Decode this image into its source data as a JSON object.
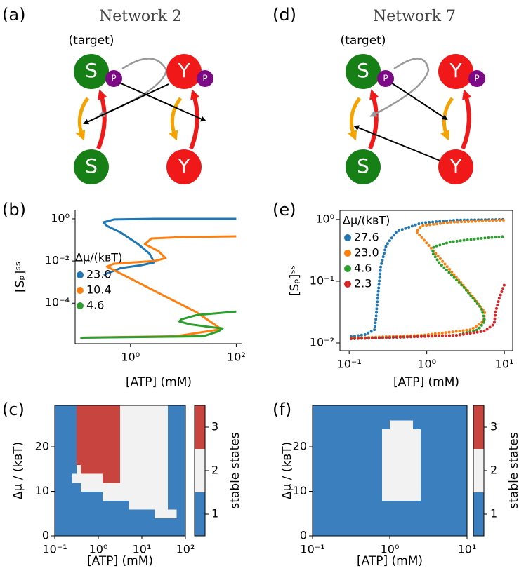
{
  "diagrams": [
    {
      "panel": "(a)",
      "title": "Network 2",
      "annotation": "(target)",
      "nodes": [
        "S",
        "Y",
        "S",
        "Y"
      ],
      "phospho": [
        "P",
        "P"
      ]
    },
    {
      "panel": "(d)",
      "title": "Network 7",
      "annotation": "(target)",
      "nodes": [
        "S",
        "Y",
        "S",
        "Y"
      ],
      "phospho": [
        "P",
        "P"
      ]
    }
  ],
  "chart_data": [
    {
      "type": "line",
      "panel": "(b)",
      "xlabel": "[ATP] (mM)",
      "ylabel": "[Sₚ]ˢˢ",
      "xscale": "log",
      "yscale": "log",
      "xlim": [
        0.09,
        130
      ],
      "ylim": [
        1.2e-06,
        2.5
      ],
      "xticks": [
        {
          "value": 1,
          "label": "10⁰"
        },
        {
          "value": 100,
          "label": "10²"
        }
      ],
      "yticks": [
        {
          "value": 0.0001,
          "label": "10⁻⁴"
        },
        {
          "value": 0.01,
          "label": "10⁻²"
        },
        {
          "value": 1,
          "label": "10⁰"
        }
      ],
      "spines": "left-bottom",
      "style": "solid",
      "legend": "center left",
      "legend_title": "Δμ/(kʙT)",
      "series": [
        {
          "name": "23.0",
          "color": "#1f77b4",
          "x": [
            0.31,
            0.66,
            1.6,
            2.8,
            2.3,
            1.4,
            0.66,
            0.36,
            0.31,
            0.49,
            2.9,
            100
          ],
          "values": [
            0.0022,
            0.0046,
            0.0063,
            0.0086,
            0.022,
            0.063,
            0.22,
            0.46,
            0.68,
            0.93,
            1.0,
            1.0
          ]
        },
        {
          "name": "10.4",
          "color": "#ff7f0e",
          "x": [
            0.113,
            7.2,
            43,
            50,
            17.7,
            3.96,
            0.89,
            0.36,
            0.49,
            2.9,
            4.6,
            3.4,
            1.87,
            2.5,
            9.7,
            100
          ],
          "values": [
            2.3e-06,
            2.7e-06,
            5.4e-06,
            6.3e-06,
            3.7e-05,
            0.00025,
            0.0017,
            0.0054,
            0.0074,
            0.01,
            0.0136,
            0.029,
            0.063,
            0.117,
            0.136,
            0.147
          ]
        },
        {
          "name": "4.6",
          "color": "#2ca02c",
          "x": [
            0.113,
            23.8,
            45.9,
            55,
            32,
            13.1,
            8.4,
            9.1,
            17.7,
            100
          ],
          "values": [
            2.3e-06,
            2.7e-06,
            4.6e-06,
            6.3e-06,
            7.4e-06,
            1e-05,
            1.36e-05,
            1.7e-05,
            2.7e-05,
            4e-05
          ]
        }
      ]
    },
    {
      "type": "heatmap",
      "panel": "(c)",
      "xlabel": "[ATP] (mM)",
      "ylabel": "Δμ / (kʙT)",
      "xscale": "log",
      "yscale": "linear",
      "xlim": [
        0.1,
        100
      ],
      "ylim": [
        0,
        29.3
      ],
      "xticks": [
        {
          "value": 0.1,
          "label": "10⁻¹"
        },
        {
          "value": 1,
          "label": "10⁰"
        },
        {
          "value": 10,
          "label": "10¹"
        },
        {
          "value": 100,
          "label": "10²"
        }
      ],
      "yticks": [
        0,
        10,
        20
      ],
      "spines": "box",
      "x_edges": [
        0.1,
        0.126,
        0.158,
        0.2,
        0.251,
        0.316,
        0.398,
        0.501,
        0.631,
        0.794,
        1,
        1.26,
        1.58,
        2,
        2.51,
        3.16,
        3.98,
        5.01,
        6.31,
        7.94,
        10,
        12.6,
        15.8,
        20,
        25.1,
        31.6,
        39.8,
        50.1,
        63.1,
        79.4,
        100
      ],
      "y_edges": [
        0,
        2,
        4,
        6,
        8,
        10,
        12,
        14,
        16,
        18,
        20,
        22,
        24,
        26,
        28,
        30
      ],
      "z": [
        [
          1,
          1,
          1,
          1,
          1,
          1,
          1,
          1,
          1,
          1,
          1,
          1,
          1,
          1,
          1,
          1,
          1,
          1,
          1,
          1,
          1,
          1,
          1,
          1,
          1,
          1,
          1,
          1,
          1,
          1
        ],
        [
          1,
          1,
          1,
          1,
          1,
          1,
          1,
          1,
          1,
          1,
          1,
          1,
          1,
          1,
          1,
          1,
          1,
          1,
          1,
          1,
          1,
          1,
          1,
          1,
          1,
          1,
          1,
          1,
          1,
          1
        ],
        [
          1,
          1,
          1,
          1,
          1,
          1,
          1,
          1,
          1,
          1,
          1,
          1,
          1,
          1,
          1,
          1,
          1,
          1,
          1,
          1,
          1,
          1,
          1,
          2,
          2,
          2,
          2,
          2,
          1,
          1
        ],
        [
          1,
          1,
          1,
          1,
          1,
          1,
          1,
          1,
          1,
          1,
          1,
          1,
          1,
          1,
          1,
          1,
          1,
          2,
          2,
          2,
          2,
          2,
          2,
          2,
          2,
          2,
          1,
          1,
          1,
          1
        ],
        [
          1,
          1,
          1,
          1,
          1,
          1,
          1,
          1,
          1,
          1,
          1,
          2,
          2,
          2,
          2,
          2,
          2,
          2,
          2,
          2,
          2,
          2,
          2,
          2,
          2,
          2,
          1,
          1,
          1,
          1
        ],
        [
          1,
          1,
          1,
          1,
          1,
          1,
          2,
          2,
          2,
          2,
          2,
          2,
          2,
          2,
          2,
          2,
          2,
          2,
          2,
          2,
          2,
          2,
          2,
          2,
          2,
          2,
          1,
          1,
          1,
          1
        ],
        [
          1,
          1,
          1,
          1,
          2,
          2,
          2,
          2,
          2,
          2,
          2,
          3,
          3,
          3,
          3,
          2,
          2,
          2,
          2,
          2,
          2,
          2,
          2,
          2,
          2,
          2,
          1,
          1,
          1,
          1
        ],
        [
          1,
          1,
          1,
          1,
          1,
          2,
          3,
          3,
          3,
          3,
          3,
          3,
          3,
          3,
          3,
          2,
          2,
          2,
          2,
          2,
          2,
          2,
          2,
          2,
          2,
          2,
          1,
          1,
          1,
          1
        ],
        [
          1,
          1,
          1,
          1,
          1,
          3,
          3,
          3,
          3,
          3,
          3,
          3,
          3,
          3,
          3,
          2,
          2,
          2,
          2,
          2,
          2,
          2,
          2,
          2,
          2,
          2,
          1,
          1,
          1,
          1
        ],
        [
          1,
          1,
          1,
          1,
          1,
          3,
          3,
          3,
          3,
          3,
          3,
          3,
          3,
          3,
          3,
          2,
          2,
          2,
          2,
          2,
          2,
          2,
          2,
          2,
          2,
          2,
          1,
          1,
          1,
          1
        ],
        [
          1,
          1,
          1,
          1,
          1,
          3,
          3,
          3,
          3,
          3,
          3,
          3,
          3,
          3,
          3,
          2,
          2,
          2,
          2,
          2,
          2,
          2,
          2,
          2,
          2,
          2,
          1,
          1,
          1,
          1
        ],
        [
          1,
          1,
          1,
          1,
          1,
          3,
          3,
          3,
          3,
          3,
          3,
          3,
          3,
          3,
          3,
          2,
          2,
          2,
          2,
          2,
          2,
          2,
          2,
          2,
          2,
          2,
          1,
          1,
          1,
          1
        ],
        [
          1,
          1,
          1,
          1,
          1,
          3,
          3,
          3,
          3,
          3,
          3,
          3,
          3,
          3,
          3,
          2,
          2,
          2,
          2,
          2,
          2,
          2,
          2,
          2,
          2,
          2,
          1,
          1,
          1,
          1
        ],
        [
          1,
          1,
          1,
          1,
          1,
          3,
          3,
          3,
          3,
          3,
          3,
          3,
          3,
          3,
          3,
          2,
          2,
          2,
          2,
          2,
          2,
          2,
          2,
          2,
          2,
          2,
          1,
          1,
          1,
          1
        ],
        [
          1,
          1,
          1,
          1,
          1,
          3,
          3,
          3,
          3,
          3,
          3,
          3,
          3,
          3,
          3,
          2,
          2,
          2,
          2,
          2,
          2,
          2,
          2,
          2,
          2,
          2,
          1,
          1,
          1,
          1
        ]
      ],
      "colorbar": {
        "label": "stable states",
        "lim": [
          0.5,
          3.5
        ],
        "ticks": [
          1,
          2,
          3
        ],
        "colors": [
          "#3b7fbf",
          "#f2f2f2",
          "#c8453f"
        ]
      }
    },
    {
      "type": "line",
      "panel": "(e)",
      "xlabel": "[ATP] (mM)",
      "ylabel": "[Sₚ]ˢˢ",
      "xscale": "log",
      "yscale": "log",
      "xlim": [
        0.076,
        12.8
      ],
      "ylim": [
        0.0075,
        1.4
      ],
      "xticks": [
        {
          "value": 0.1,
          "label": "10⁻¹"
        },
        {
          "value": 1,
          "label": "10⁰"
        },
        {
          "value": 10,
          "label": "10¹"
        }
      ],
      "yticks": [
        {
          "value": 0.01,
          "label": "10⁻²"
        },
        {
          "value": 0.1,
          "label": "10⁻¹"
        },
        {
          "value": 1,
          "label": "10⁰"
        }
      ],
      "spines": "box",
      "style": "dotted",
      "legend": "upper left",
      "legend_title": "Δμ/(kʙT)",
      "series": [
        {
          "name": "27.6",
          "color": "#1f77b4",
          "x": [
            0.106,
            0.161,
            0.212,
            0.221,
            0.235,
            0.255,
            0.3,
            0.41,
            0.86,
            2.45,
            10
          ],
          "values": [
            0.0127,
            0.0137,
            0.0164,
            0.0243,
            0.061,
            0.173,
            0.38,
            0.64,
            0.88,
            0.975,
            1.0
          ]
        },
        {
          "name": "23.0",
          "color": "#ff7f0e",
          "x": [
            0.106,
            0.86,
            3.72,
            5.4,
            5.6,
            3.72,
            1.99,
            1.06,
            0.73,
            0.86,
            1.99,
            10
          ],
          "values": [
            0.012,
            0.0133,
            0.0164,
            0.0225,
            0.0316,
            0.061,
            0.152,
            0.38,
            0.64,
            0.79,
            0.9,
            0.975
          ]
        },
        {
          "name": "4.6",
          "color": "#2ca02c",
          "x": [
            0.106,
            2.45,
            4.58,
            5.6,
            5.08,
            3.02,
            1.46,
            1.18,
            1.23,
            1.99,
            4.58,
            10
          ],
          "values": [
            0.0117,
            0.0133,
            0.0164,
            0.0225,
            0.036,
            0.079,
            0.197,
            0.29,
            0.36,
            0.43,
            0.49,
            0.53
          ]
        },
        {
          "name": "2.3",
          "color": "#d62728",
          "x": [
            0.106,
            2.45,
            5.6,
            7.4,
            7.7,
            8.6,
            10
          ],
          "values": [
            0.0117,
            0.0133,
            0.0156,
            0.0203,
            0.0316,
            0.053,
            0.088
          ]
        }
      ]
    },
    {
      "type": "heatmap",
      "panel": "(f)",
      "xlabel": "[ATP] (mM)",
      "ylabel": "Δμ / (kʙT)",
      "xscale": "log",
      "yscale": "linear",
      "xlim": [
        0.1,
        10
      ],
      "ylim": [
        0,
        29.3
      ],
      "xticks": [
        {
          "value": 0.1,
          "label": "10⁻¹"
        },
        {
          "value": 1,
          "label": "10⁰"
        },
        {
          "value": 10,
          "label": "10¹"
        }
      ],
      "yticks": [
        0,
        10,
        20
      ],
      "spines": "box",
      "x_edges": [
        0.1,
        0.126,
        0.158,
        0.2,
        0.251,
        0.316,
        0.398,
        0.501,
        0.631,
        0.794,
        1,
        1.26,
        1.58,
        2,
        2.51,
        3.16,
        3.98,
        5.01,
        6.31,
        7.94,
        10
      ],
      "y_edges": [
        0,
        2,
        4,
        6,
        8,
        10,
        12,
        14,
        16,
        18,
        20,
        22,
        24,
        26,
        28,
        30
      ],
      "z": [
        [
          1,
          1,
          1,
          1,
          1,
          1,
          1,
          1,
          1,
          1,
          1,
          1,
          1,
          1,
          1,
          1,
          1,
          1,
          1,
          1
        ],
        [
          1,
          1,
          1,
          1,
          1,
          1,
          1,
          1,
          1,
          1,
          1,
          1,
          1,
          1,
          1,
          1,
          1,
          1,
          1,
          1
        ],
        [
          1,
          1,
          1,
          1,
          1,
          1,
          1,
          1,
          1,
          1,
          1,
          1,
          1,
          1,
          1,
          1,
          1,
          1,
          1,
          1
        ],
        [
          1,
          1,
          1,
          1,
          1,
          1,
          1,
          1,
          1,
          1,
          1,
          1,
          1,
          1,
          1,
          1,
          1,
          1,
          1,
          1
        ],
        [
          1,
          1,
          1,
          1,
          1,
          1,
          1,
          1,
          1,
          2,
          2,
          2,
          2,
          2,
          1,
          1,
          1,
          1,
          1,
          1
        ],
        [
          1,
          1,
          1,
          1,
          1,
          1,
          1,
          1,
          1,
          2,
          2,
          2,
          2,
          2,
          1,
          1,
          1,
          1,
          1,
          1
        ],
        [
          1,
          1,
          1,
          1,
          1,
          1,
          1,
          1,
          1,
          2,
          2,
          2,
          2,
          2,
          1,
          1,
          1,
          1,
          1,
          1
        ],
        [
          1,
          1,
          1,
          1,
          1,
          1,
          1,
          1,
          1,
          2,
          2,
          2,
          2,
          2,
          1,
          1,
          1,
          1,
          1,
          1
        ],
        [
          1,
          1,
          1,
          1,
          1,
          1,
          1,
          1,
          1,
          2,
          2,
          2,
          2,
          2,
          1,
          1,
          1,
          1,
          1,
          1
        ],
        [
          1,
          1,
          1,
          1,
          1,
          1,
          1,
          1,
          1,
          2,
          2,
          2,
          2,
          2,
          1,
          1,
          1,
          1,
          1,
          1
        ],
        [
          1,
          1,
          1,
          1,
          1,
          1,
          1,
          1,
          1,
          2,
          2,
          2,
          2,
          2,
          1,
          1,
          1,
          1,
          1,
          1
        ],
        [
          1,
          1,
          1,
          1,
          1,
          1,
          1,
          1,
          1,
          2,
          2,
          2,
          2,
          2,
          1,
          1,
          1,
          1,
          1,
          1
        ],
        [
          1,
          1,
          1,
          1,
          1,
          1,
          1,
          1,
          1,
          1,
          2,
          2,
          2,
          1,
          1,
          1,
          1,
          1,
          1,
          1
        ],
        [
          1,
          1,
          1,
          1,
          1,
          1,
          1,
          1,
          1,
          1,
          1,
          1,
          1,
          1,
          1,
          1,
          1,
          1,
          1,
          1
        ],
        [
          1,
          1,
          1,
          1,
          1,
          1,
          1,
          1,
          1,
          1,
          1,
          1,
          1,
          1,
          1,
          1,
          1,
          1,
          1,
          1
        ]
      ],
      "colorbar": {
        "label": "stable states",
        "lim": [
          0.5,
          3.5
        ],
        "ticks": [
          1,
          2,
          3
        ],
        "colors": [
          "#3b7fbf",
          "#f2f2f2",
          "#c8453f"
        ]
      }
    }
  ]
}
